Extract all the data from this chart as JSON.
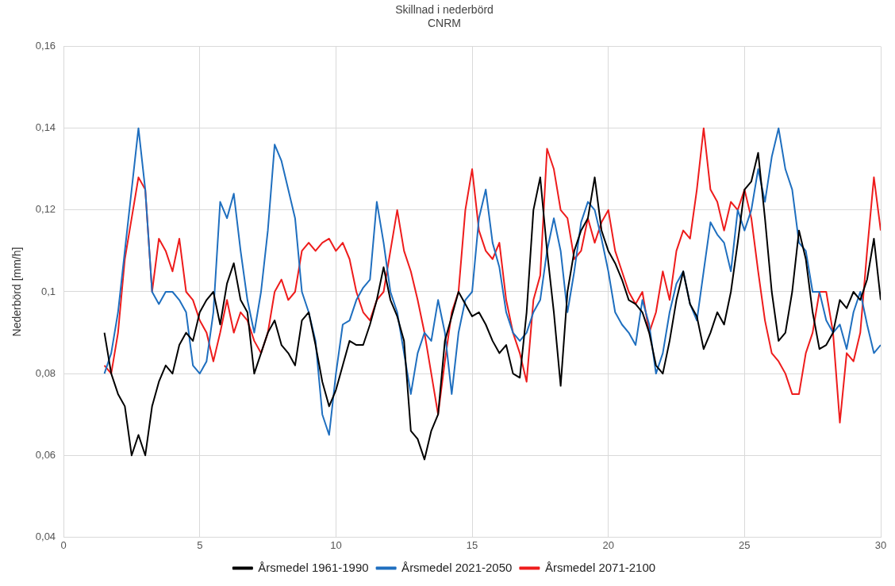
{
  "chart_data": {
    "type": "line",
    "title": "Skillnad i nederbörd",
    "subtitle": "CNRM",
    "ylabel": "Nederbörd [mm/h]",
    "x": [
      1.5,
      1.75,
      2,
      2.25,
      2.5,
      2.75,
      3,
      3.25,
      3.5,
      3.75,
      4,
      4.25,
      4.5,
      4.75,
      5,
      5.25,
      5.5,
      5.75,
      6,
      6.25,
      6.5,
      6.75,
      7,
      7.25,
      7.5,
      7.75,
      8,
      8.25,
      8.5,
      8.75,
      9,
      9.25,
      9.5,
      9.75,
      10,
      10.25,
      10.5,
      10.75,
      11,
      11.25,
      11.5,
      11.75,
      12,
      12.25,
      12.5,
      12.75,
      13,
      13.25,
      13.5,
      13.75,
      14,
      14.25,
      14.5,
      14.75,
      15,
      15.25,
      15.5,
      15.75,
      16,
      16.25,
      16.5,
      16.75,
      17,
      17.25,
      17.5,
      17.75,
      18,
      18.25,
      18.5,
      18.75,
      19,
      19.25,
      19.5,
      19.75,
      20,
      20.25,
      20.5,
      20.75,
      21,
      21.25,
      21.5,
      21.75,
      22,
      22.25,
      22.5,
      22.75,
      23,
      23.25,
      23.5,
      23.75,
      24,
      24.25,
      24.5,
      24.75,
      25,
      25.25,
      25.5,
      25.75,
      26,
      26.25,
      26.5,
      26.75,
      27,
      27.25,
      27.5,
      27.75,
      28,
      28.25,
      28.5,
      28.75,
      29,
      29.25,
      29.5,
      29.75,
      30
    ],
    "series": [
      {
        "name": "Årsmedel 1961-1990",
        "color": "#000000",
        "values": [
          0.09,
          0.08,
          0.075,
          0.072,
          0.06,
          0.065,
          0.06,
          0.072,
          0.078,
          0.082,
          0.08,
          0.087,
          0.09,
          0.088,
          0.095,
          0.098,
          0.1,
          0.092,
          0.102,
          0.107,
          0.098,
          0.095,
          0.08,
          0.085,
          0.09,
          0.093,
          0.087,
          0.085,
          0.082,
          0.093,
          0.095,
          0.087,
          0.078,
          0.072,
          0.076,
          0.082,
          0.088,
          0.087,
          0.087,
          0.092,
          0.098,
          0.106,
          0.098,
          0.094,
          0.088,
          0.066,
          0.064,
          0.059,
          0.066,
          0.07,
          0.088,
          0.094,
          0.1,
          0.097,
          0.094,
          0.095,
          0.092,
          0.088,
          0.085,
          0.087,
          0.08,
          0.079,
          0.095,
          0.12,
          0.128,
          0.11,
          0.095,
          0.077,
          0.1,
          0.11,
          0.115,
          0.118,
          0.128,
          0.115,
          0.11,
          0.107,
          0.103,
          0.098,
          0.097,
          0.095,
          0.09,
          0.082,
          0.08,
          0.088,
          0.098,
          0.105,
          0.097,
          0.094,
          0.086,
          0.09,
          0.095,
          0.092,
          0.1,
          0.112,
          0.125,
          0.127,
          0.134,
          0.118,
          0.1,
          0.088,
          0.09,
          0.1,
          0.115,
          0.108,
          0.095,
          0.086,
          0.087,
          0.09,
          0.098,
          0.096,
          0.1,
          0.098,
          0.103,
          0.113,
          0.098
        ]
      },
      {
        "name": "Årsmedel 2021-2050",
        "color": "#1f6fbf",
        "values": [
          0.08,
          0.085,
          0.095,
          0.11,
          0.125,
          0.14,
          0.125,
          0.1,
          0.097,
          0.1,
          0.1,
          0.098,
          0.095,
          0.082,
          0.08,
          0.083,
          0.095,
          0.122,
          0.118,
          0.124,
          0.11,
          0.098,
          0.09,
          0.1,
          0.115,
          0.136,
          0.132,
          0.125,
          0.118,
          0.1,
          0.095,
          0.088,
          0.07,
          0.065,
          0.08,
          0.092,
          0.093,
          0.098,
          0.101,
          0.103,
          0.122,
          0.112,
          0.1,
          0.095,
          0.085,
          0.075,
          0.085,
          0.09,
          0.088,
          0.098,
          0.09,
          0.075,
          0.09,
          0.098,
          0.1,
          0.118,
          0.125,
          0.112,
          0.106,
          0.095,
          0.09,
          0.088,
          0.09,
          0.095,
          0.098,
          0.11,
          0.118,
          0.11,
          0.095,
          0.105,
          0.117,
          0.122,
          0.12,
          0.113,
          0.105,
          0.095,
          0.092,
          0.09,
          0.087,
          0.098,
          0.092,
          0.08,
          0.085,
          0.095,
          0.102,
          0.105,
          0.097,
          0.093,
          0.105,
          0.117,
          0.114,
          0.112,
          0.105,
          0.12,
          0.115,
          0.12,
          0.13,
          0.122,
          0.133,
          0.14,
          0.13,
          0.125,
          0.112,
          0.11,
          0.1,
          0.1,
          0.093,
          0.09,
          0.092,
          0.086,
          0.095,
          0.1,
          0.092,
          0.085,
          0.087
        ]
      },
      {
        "name": "Årsmedel 2071-2100",
        "color": "#ee1c1c",
        "values": [
          0.082,
          0.08,
          0.09,
          0.108,
          0.118,
          0.128,
          0.125,
          0.1,
          0.113,
          0.11,
          0.105,
          0.113,
          0.1,
          0.098,
          0.093,
          0.09,
          0.083,
          0.09,
          0.098,
          0.09,
          0.095,
          0.093,
          0.088,
          0.085,
          0.09,
          0.1,
          0.103,
          0.098,
          0.1,
          0.11,
          0.112,
          0.11,
          0.112,
          0.113,
          0.11,
          0.112,
          0.108,
          0.1,
          0.095,
          0.093,
          0.098,
          0.1,
          0.11,
          0.12,
          0.11,
          0.105,
          0.098,
          0.09,
          0.08,
          0.07,
          0.083,
          0.095,
          0.1,
          0.12,
          0.13,
          0.115,
          0.11,
          0.108,
          0.112,
          0.098,
          0.09,
          0.085,
          0.078,
          0.098,
          0.104,
          0.135,
          0.13,
          0.12,
          0.118,
          0.108,
          0.11,
          0.118,
          0.112,
          0.117,
          0.12,
          0.11,
          0.105,
          0.1,
          0.097,
          0.1,
          0.09,
          0.095,
          0.105,
          0.098,
          0.11,
          0.115,
          0.113,
          0.125,
          0.14,
          0.125,
          0.122,
          0.115,
          0.122,
          0.12,
          0.125,
          0.118,
          0.105,
          0.093,
          0.085,
          0.083,
          0.08,
          0.075,
          0.075,
          0.085,
          0.09,
          0.1,
          0.1,
          0.09,
          0.068,
          0.085,
          0.083,
          0.09,
          0.11,
          0.128,
          0.115
        ]
      }
    ],
    "xlim": [
      0,
      30
    ],
    "xticks": [
      0,
      5,
      10,
      15,
      20,
      25,
      30
    ],
    "ylim": [
      0.04,
      0.16
    ],
    "yticks": [
      {
        "value": 0.04,
        "label": "0,04"
      },
      {
        "value": 0.06,
        "label": "0,06"
      },
      {
        "value": 0.08,
        "label": "0,08"
      },
      {
        "value": 0.1,
        "label": "0,1"
      },
      {
        "value": 0.12,
        "label": "0,12"
      },
      {
        "value": 0.14,
        "label": "0,14"
      },
      {
        "value": 0.16,
        "label": "0,16"
      }
    ],
    "grid": true,
    "legend": "bottom",
    "marker": "none",
    "line_style": "solid"
  }
}
